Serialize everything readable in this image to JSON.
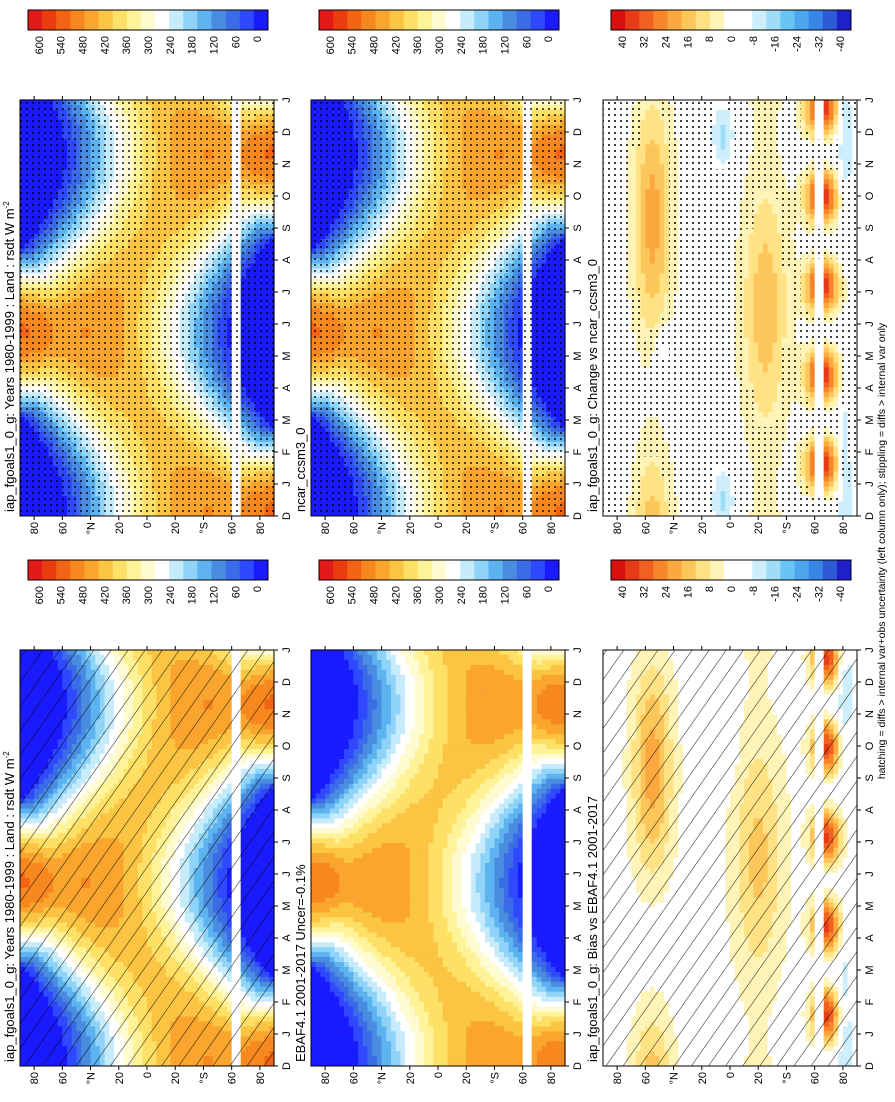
{
  "figure": {
    "footer": "hatching = diffs > internal var+obs uncertainty (left column only); stippling = diffs > internal var only"
  },
  "lat_ticks": [
    "80",
    "60",
    "°N",
    "20",
    "0",
    "20",
    "°S",
    "60",
    "80"
  ],
  "month_ticks": [
    "D",
    "J",
    "F",
    "M",
    "A",
    "M",
    "J",
    "J",
    "A",
    "S",
    "O",
    "N",
    "D",
    "J"
  ],
  "colormaps": {
    "full": [
      "#1a1aff",
      "#2e49ff",
      "#3b6be6",
      "#4a8de0",
      "#5cb3f0",
      "#8fd4f8",
      "#c6ebfb",
      "#ffffff",
      "#fffbd0",
      "#fff39a",
      "#fde065",
      "#fbc443",
      "#f9a52e",
      "#f6881f",
      "#f26414",
      "#eb3c0d",
      "#e21a1a"
    ],
    "diff": [
      "#2020c8",
      "#2e5ad8",
      "#3a86e6",
      "#4ba6ee",
      "#68c4f4",
      "#9edcf8",
      "#cfeefb",
      "#ffffff",
      "#ffffff",
      "#fff4b8",
      "#ffe283",
      "#fdc65a",
      "#fba83e",
      "#f7862b",
      "#f06020",
      "#e63a18",
      "#d81010"
    ]
  },
  "chart_data": [
    {
      "type": "heatmap",
      "id": "model-left",
      "title": "iap_fgoals1_0_g: Years 1980-1999 : Land : rsdt W m",
      "title_sup": "-2",
      "field": "full",
      "overlay": "hatching",
      "colorbar_labels": [
        "600",
        "540",
        "480",
        "420",
        "360",
        "300",
        "240",
        "180",
        "120",
        "60",
        "0"
      ],
      "xlabels": [
        "D",
        "J",
        "F",
        "M",
        "A",
        "M",
        "J",
        "J",
        "A",
        "S",
        "O",
        "N",
        "D",
        "J"
      ],
      "ylabels": [
        "80",
        "60",
        "°N",
        "20",
        "0",
        "20",
        "°S",
        "60",
        "80"
      ],
      "y_range": [
        -90,
        90
      ],
      "value_range": [
        0,
        600
      ]
    },
    {
      "type": "heatmap",
      "id": "obs-left",
      "title": "EBAF4.1 2001-2017 Uncer=-0.1%",
      "field": "full",
      "overlay": "none",
      "colorbar_labels": [
        "600",
        "540",
        "480",
        "420",
        "360",
        "300",
        "240",
        "180",
        "120",
        "60",
        "0"
      ],
      "xlabels": [
        "D",
        "J",
        "F",
        "M",
        "A",
        "M",
        "J",
        "J",
        "A",
        "S",
        "O",
        "N",
        "D",
        "J"
      ],
      "ylabels": [
        "80",
        "60",
        "°N",
        "20",
        "0",
        "20",
        "°S",
        "60",
        "80"
      ],
      "y_range": [
        -90,
        90
      ],
      "value_range": [
        0,
        600
      ]
    },
    {
      "type": "heatmap",
      "id": "bias-left",
      "title": "iap_fgoals1_0_g: Bias vs EBAF4.1 2001-2017",
      "field": "diff",
      "overlay": "hatching",
      "colorbar_labels": [
        "40",
        "32",
        "24",
        "16",
        "8",
        "0",
        "-8",
        "-16",
        "-24",
        "-32",
        "-40"
      ],
      "xlabels": [
        "D",
        "J",
        "F",
        "M",
        "A",
        "M",
        "J",
        "J",
        "A",
        "S",
        "O",
        "N",
        "D",
        "J"
      ],
      "ylabels": [
        "80",
        "60",
        "°N",
        "20",
        "0",
        "20",
        "°S",
        "60",
        "80"
      ],
      "y_range": [
        -90,
        90
      ],
      "value_range": [
        -40,
        40
      ]
    },
    {
      "type": "heatmap",
      "id": "model-right",
      "title": "iap_fgoals1_0_g: Years 1980-1999 : Land : rsdt W m",
      "title_sup": "-2",
      "field": "full",
      "overlay": "stippling",
      "colorbar_labels": [
        "600",
        "540",
        "480",
        "420",
        "360",
        "300",
        "240",
        "180",
        "120",
        "60",
        "0"
      ],
      "xlabels": [
        "D",
        "J",
        "F",
        "M",
        "A",
        "M",
        "J",
        "J",
        "A",
        "S",
        "O",
        "N",
        "D",
        "J"
      ],
      "ylabels": [
        "80",
        "60",
        "°N",
        "20",
        "0",
        "20",
        "°S",
        "60",
        "80"
      ],
      "y_range": [
        -90,
        90
      ],
      "value_range": [
        0,
        600
      ]
    },
    {
      "type": "heatmap",
      "id": "ref-right",
      "title": "ncar_ccsm3_0",
      "field": "full",
      "overlay": "stippling",
      "colorbar_labels": [
        "600",
        "540",
        "480",
        "420",
        "360",
        "300",
        "240",
        "180",
        "120",
        "60",
        "0"
      ],
      "xlabels": [
        "D",
        "J",
        "F",
        "M",
        "A",
        "M",
        "J",
        "J",
        "A",
        "S",
        "O",
        "N",
        "D",
        "J"
      ],
      "ylabels": [
        "80",
        "60",
        "°N",
        "20",
        "0",
        "20",
        "°S",
        "60",
        "80"
      ],
      "y_range": [
        -90,
        90
      ],
      "value_range": [
        0,
        600
      ]
    },
    {
      "type": "heatmap",
      "id": "change-right",
      "title": "iap_fgoals1_0_g: Change vs ncar_ccsm3_0",
      "field": "change",
      "overlay": "stippling-where-small",
      "colorbar_labels": [
        "40",
        "32",
        "24",
        "16",
        "8",
        "0",
        "-8",
        "-16",
        "-24",
        "-32",
        "-40"
      ],
      "xlabels": [
        "D",
        "J",
        "F",
        "M",
        "A",
        "M",
        "J",
        "J",
        "A",
        "S",
        "O",
        "N",
        "D",
        "J"
      ],
      "ylabels": [
        "80",
        "60",
        "°N",
        "20",
        "0",
        "20",
        "°S",
        "60",
        "80"
      ],
      "y_range": [
        -90,
        90
      ],
      "value_range": [
        -40,
        40
      ]
    }
  ]
}
